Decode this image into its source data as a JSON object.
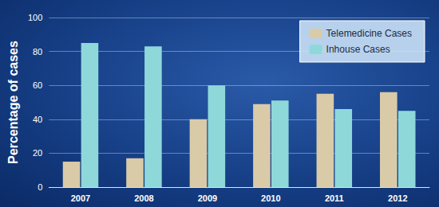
{
  "chart_data": {
    "type": "bar",
    "categories": [
      "2007",
      "2008",
      "2009",
      "2010",
      "2011",
      "2012"
    ],
    "series": [
      {
        "name": "Telemedicine Cases",
        "color": "#d9cba8",
        "values": [
          15,
          17,
          40,
          49,
          55,
          56
        ]
      },
      {
        "name": "Inhouse Cases",
        "color": "#8fd8da",
        "values": [
          85,
          83,
          60,
          51,
          46,
          45
        ]
      }
    ],
    "y_label": "Percentage of cases",
    "ylim": [
      0,
      100
    ],
    "yticks": [
      0,
      20,
      40,
      60,
      80,
      100
    ],
    "grid": true,
    "legend": "top-right"
  }
}
